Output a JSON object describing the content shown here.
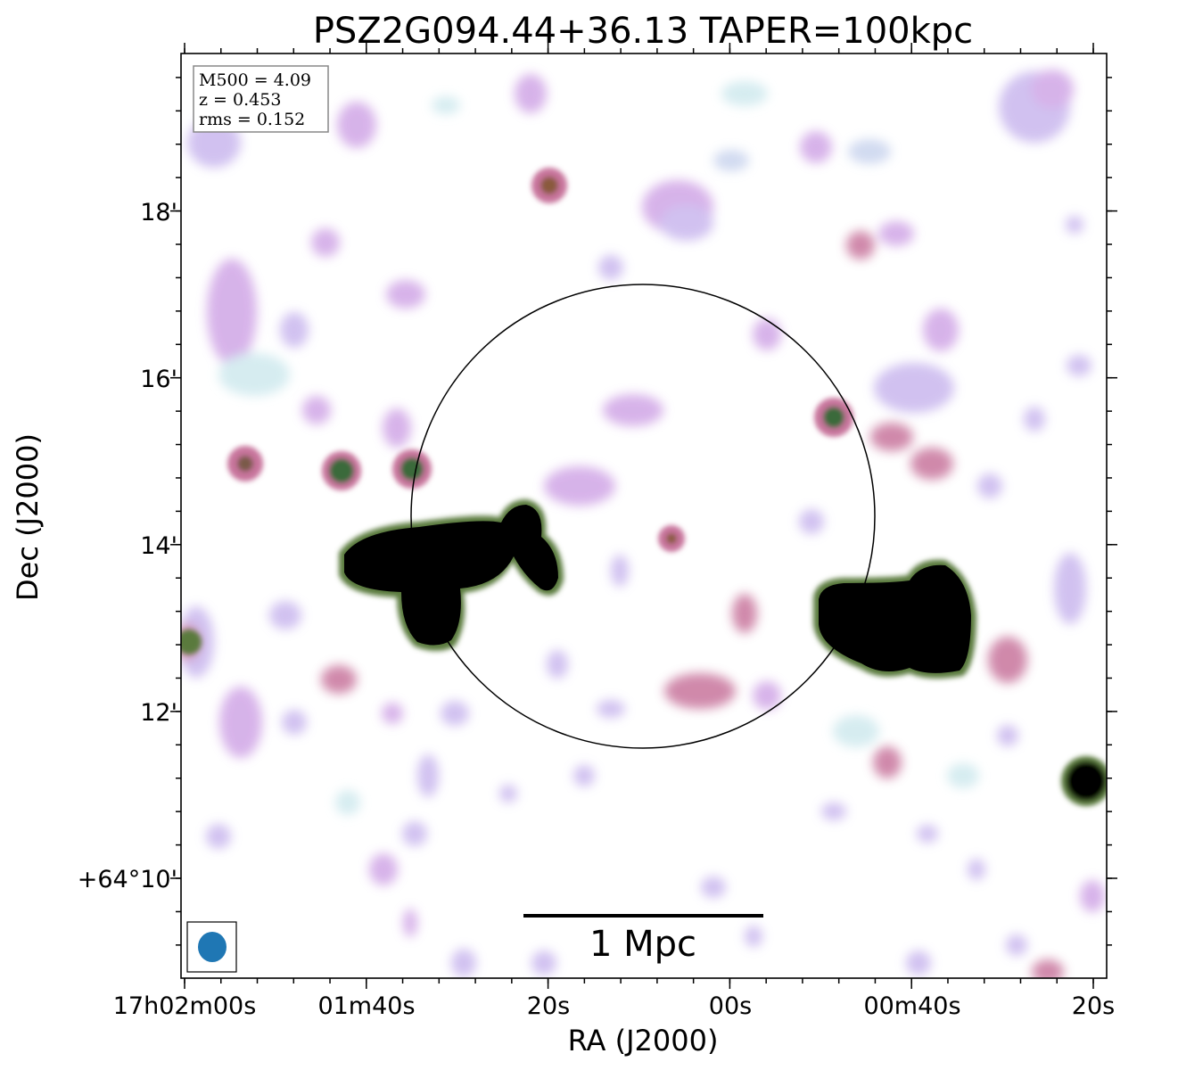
{
  "chart_data": {
    "type": "heatmap",
    "title": "PSZ2G094.44+36.13 TAPER=100kpc",
    "xlabel": "RA (J2000)",
    "ylabel": "Dec (J2000)",
    "x_ticks": [
      "17h02m00s",
      "01m40s",
      "20s",
      "00s",
      "00m40s",
      "20s"
    ],
    "y_ticks": [
      "+64°10'",
      "12'",
      "14'",
      "16'",
      "18'"
    ],
    "info_box": [
      "M500 = 4.09",
      "z = 0.453",
      "rms = 0.152"
    ],
    "scale_bar_label": "1 Mpc",
    "colormap": [
      "#cfe9ee",
      "#b8c6ee",
      "#d0a6e6",
      "#c8749c",
      "#5a7a3c",
      "#000000"
    ]
  }
}
